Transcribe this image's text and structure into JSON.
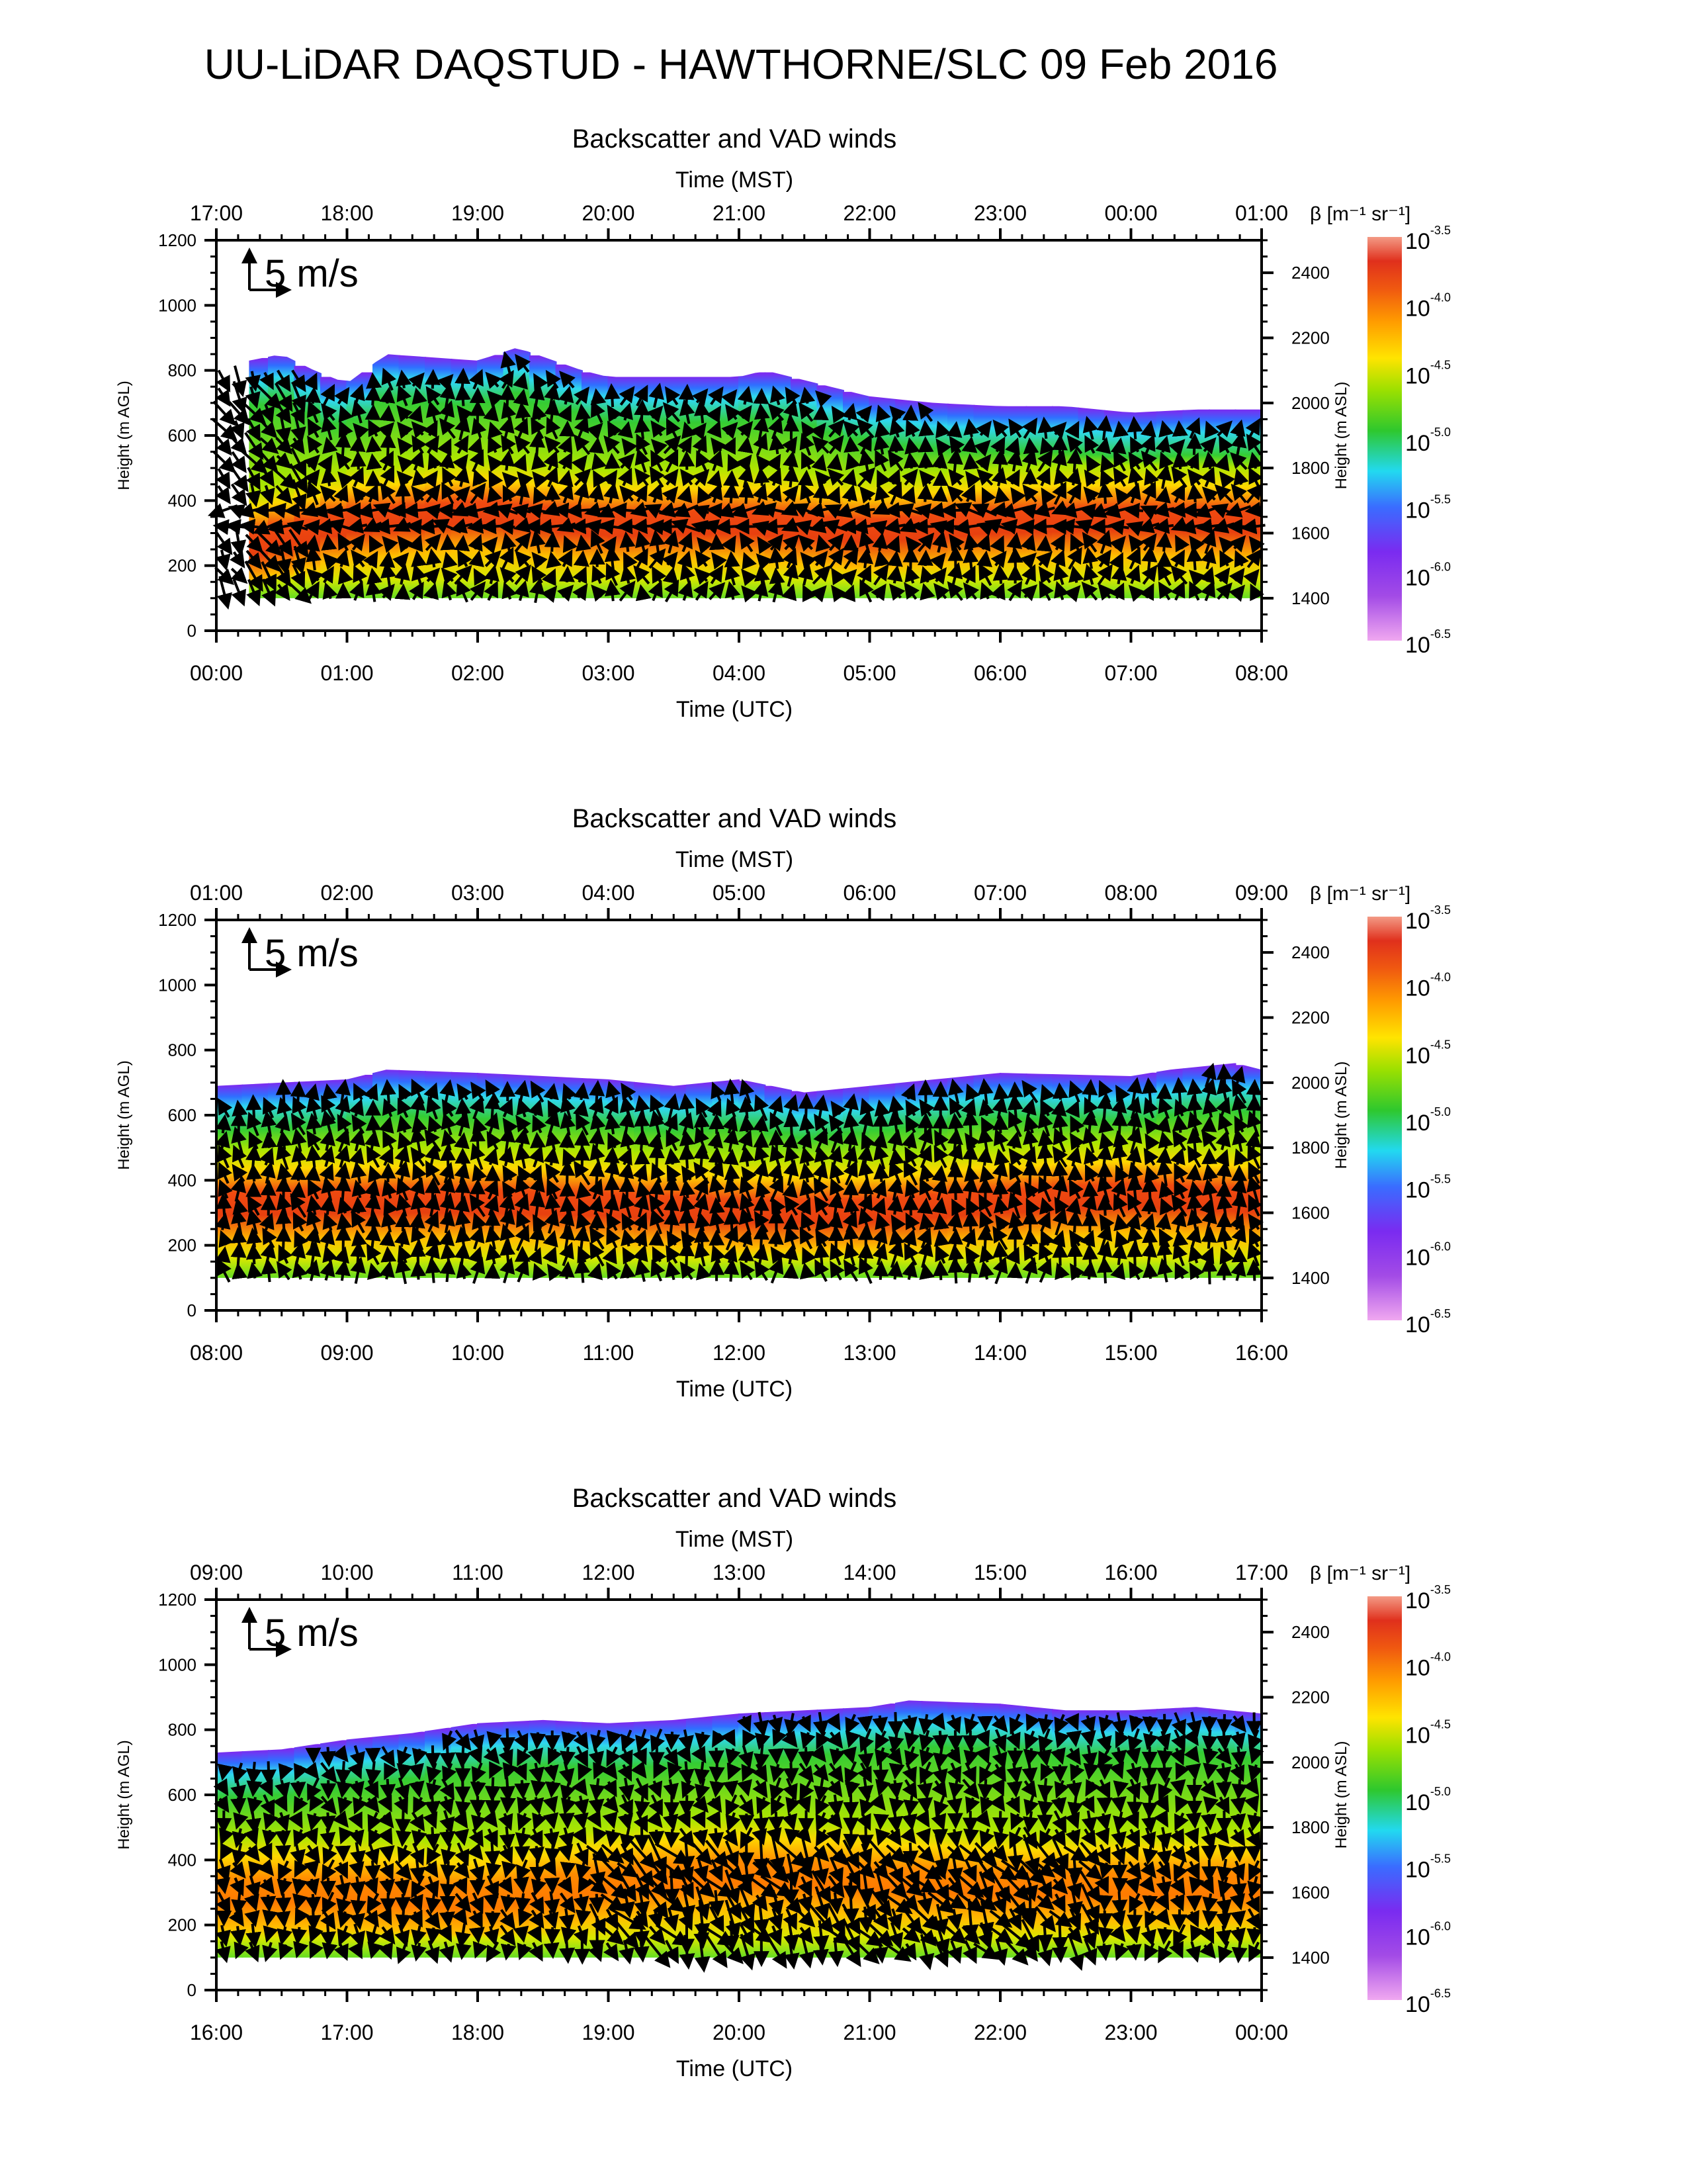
{
  "title": "UU-LiDAR DAQSTUD - HAWTHORNE/SLC 09 Feb 2016",
  "reference_arrow_label": "5 m/s",
  "colorbar": {
    "label": "β [m⁻¹ sr⁻¹]",
    "exponents": [
      "-3.5",
      "-4.0",
      "-4.5",
      "-5.0",
      "-5.5",
      "-6.0",
      "-6.5"
    ],
    "base": "10",
    "colors": [
      "#ff9a80",
      "#e53a1a",
      "#ff8c00",
      "#ffe600",
      "#33cc33",
      "#33d6f0",
      "#2f6fff",
      "#8a2be2",
      "#e59ee8"
    ]
  },
  "chart_data": [
    {
      "type": "heatmap",
      "title": "Backscatter and VAD winds",
      "top_xlabel": "Time (MST)",
      "top_ticks": [
        "17:00",
        "18:00",
        "19:00",
        "20:00",
        "21:00",
        "22:00",
        "23:00",
        "00:00",
        "01:00"
      ],
      "xlabel": "Time (UTC)",
      "bottom_ticks": [
        "00:00",
        "01:00",
        "02:00",
        "03:00",
        "04:00",
        "05:00",
        "06:00",
        "07:00",
        "08:00"
      ],
      "ylabel": "Height (m AGL)",
      "ylim": [
        0,
        1200
      ],
      "yticks": [
        "0",
        "200",
        "400",
        "600",
        "800",
        "1000",
        "1200"
      ],
      "y2label": "Height (m ASL)",
      "y2ticks": [
        "1400",
        "1600",
        "1800",
        "2000",
        "2200",
        "2400"
      ],
      "x_hours": [
        0,
        8
      ],
      "data_bottom_m": 100,
      "top_boundary_m": [
        [
          0.25,
          830
        ],
        [
          0.5,
          850
        ],
        [
          0.75,
          800
        ],
        [
          1.0,
          760
        ],
        [
          1.3,
          850
        ],
        [
          2.0,
          830
        ],
        [
          2.3,
          870
        ],
        [
          2.8,
          800
        ],
        [
          3.0,
          780
        ],
        [
          3.5,
          780
        ],
        [
          4.0,
          780
        ],
        [
          4.2,
          800
        ],
        [
          4.5,
          770
        ],
        [
          5.0,
          720
        ],
        [
          5.5,
          700
        ],
        [
          6.0,
          690
        ],
        [
          6.5,
          690
        ],
        [
          7.0,
          670
        ],
        [
          7.5,
          680
        ],
        [
          8.0,
          680
        ]
      ],
      "max_layer_m": [
        [
          0.25,
          260
        ],
        [
          1.0,
          330
        ],
        [
          2.0,
          360
        ],
        [
          3.0,
          320
        ],
        [
          4.0,
          330
        ],
        [
          5.0,
          300
        ],
        [
          6.0,
          330
        ],
        [
          7.0,
          340
        ],
        [
          8.0,
          330
        ]
      ],
      "max_layer_strength": 1.0,
      "wind_style": "mixed"
    },
    {
      "type": "heatmap",
      "title": "Backscatter and VAD winds",
      "top_xlabel": "Time (MST)",
      "top_ticks": [
        "01:00",
        "02:00",
        "03:00",
        "04:00",
        "05:00",
        "06:00",
        "07:00",
        "08:00",
        "09:00"
      ],
      "xlabel": "Time (UTC)",
      "bottom_ticks": [
        "08:00",
        "09:00",
        "10:00",
        "11:00",
        "12:00",
        "13:00",
        "14:00",
        "15:00",
        "16:00"
      ],
      "ylabel": "Height (m AGL)",
      "ylim": [
        0,
        1200
      ],
      "yticks": [
        "0",
        "200",
        "400",
        "600",
        "800",
        "1000",
        "1200"
      ],
      "y2label": "Height (m ASL)",
      "y2ticks": [
        "1400",
        "1600",
        "1800",
        "2000",
        "2200",
        "2400"
      ],
      "x_hours": [
        8,
        16
      ],
      "data_bottom_m": 100,
      "top_boundary_m": [
        [
          8.0,
          690
        ],
        [
          9.0,
          710
        ],
        [
          9.3,
          740
        ],
        [
          10.0,
          730
        ],
        [
          10.5,
          720
        ],
        [
          11.0,
          710
        ],
        [
          11.5,
          690
        ],
        [
          12.0,
          710
        ],
        [
          12.5,
          670
        ],
        [
          13.0,
          690
        ],
        [
          13.5,
          710
        ],
        [
          14.0,
          730
        ],
        [
          15.0,
          720
        ],
        [
          15.3,
          740
        ],
        [
          15.8,
          760
        ],
        [
          16.0,
          740
        ]
      ],
      "max_layer_m": [
        [
          8.0,
          320
        ],
        [
          9.0,
          330
        ],
        [
          10.0,
          330
        ],
        [
          11.0,
          320
        ],
        [
          12.0,
          300
        ],
        [
          13.0,
          300
        ],
        [
          14.0,
          330
        ],
        [
          15.0,
          350
        ],
        [
          16.0,
          330
        ]
      ],
      "max_layer_strength": 0.9,
      "wind_style": "southerly"
    },
    {
      "type": "heatmap",
      "title": "Backscatter and VAD winds",
      "top_xlabel": "Time (MST)",
      "top_ticks": [
        "09:00",
        "10:00",
        "11:00",
        "12:00",
        "13:00",
        "14:00",
        "15:00",
        "16:00",
        "17:00"
      ],
      "xlabel": "Time (UTC)",
      "bottom_ticks": [
        "16:00",
        "17:00",
        "18:00",
        "19:00",
        "20:00",
        "21:00",
        "22:00",
        "23:00",
        "00:00"
      ],
      "ylabel": "Height (m AGL)",
      "ylim": [
        0,
        1200
      ],
      "yticks": [
        "0",
        "200",
        "400",
        "600",
        "800",
        "1000",
        "1200"
      ],
      "y2label": "Height (m ASL)",
      "y2ticks": [
        "1400",
        "1600",
        "1800",
        "2000",
        "2200",
        "2400"
      ],
      "x_hours": [
        16,
        24
      ],
      "data_bottom_m": 100,
      "top_boundary_m": [
        [
          16.0,
          730
        ],
        [
          16.5,
          740
        ],
        [
          17.0,
          770
        ],
        [
          17.5,
          790
        ],
        [
          18.0,
          820
        ],
        [
          18.5,
          830
        ],
        [
          19.0,
          820
        ],
        [
          19.5,
          830
        ],
        [
          20.0,
          850
        ],
        [
          21.0,
          870
        ],
        [
          21.3,
          890
        ],
        [
          22.0,
          880
        ],
        [
          22.5,
          860
        ],
        [
          23.0,
          860
        ],
        [
          23.5,
          870
        ],
        [
          24.0,
          850
        ]
      ],
      "max_layer_m": [
        [
          16.0,
          300
        ],
        [
          17.0,
          300
        ],
        [
          18.0,
          280
        ],
        [
          19.0,
          330
        ],
        [
          20.0,
          360
        ],
        [
          21.0,
          340
        ],
        [
          22.0,
          320
        ],
        [
          23.0,
          320
        ],
        [
          24.0,
          320
        ]
      ],
      "max_layer_strength": 0.7,
      "wind_style": "northerly"
    }
  ]
}
